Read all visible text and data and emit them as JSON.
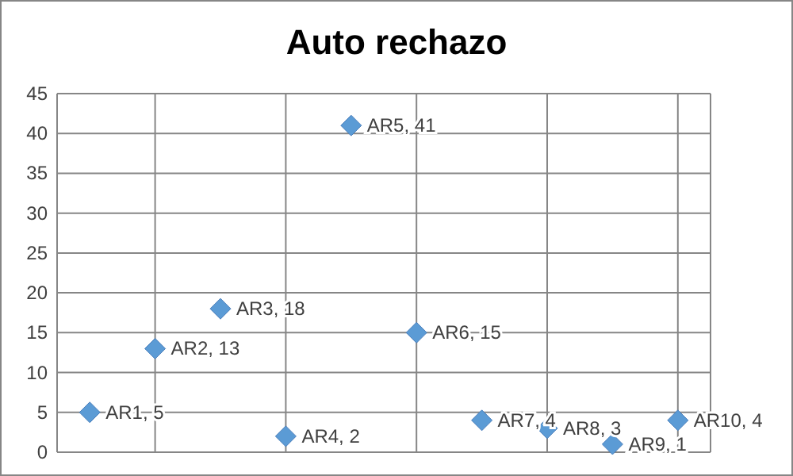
{
  "chart_data": {
    "type": "scatter",
    "title": "Auto rechazo",
    "categories": [
      null,
      null,
      null,
      null,
      null,
      null,
      null,
      null,
      null,
      null
    ],
    "series": [
      {
        "color": "#5b9bd5",
        "values": [
          5,
          13,
          18,
          2,
          41,
          15,
          4,
          3,
          1,
          4
        ],
        "value_labels": [
          "AR1, 5",
          "AR2, 13",
          "AR3, 18",
          "AR4, 2",
          "AR5, 41",
          "AR6, 15",
          "AR7, 4",
          "AR8, 3",
          "AR9, 1",
          "AR10, 4"
        ]
      }
    ],
    "ylim": [
      0,
      45
    ],
    "yticks": [
      0,
      5,
      10,
      15,
      20,
      25,
      30,
      35,
      40,
      45
    ],
    "tick_labels": "y",
    "grid": true,
    "marker": "diamond"
  }
}
